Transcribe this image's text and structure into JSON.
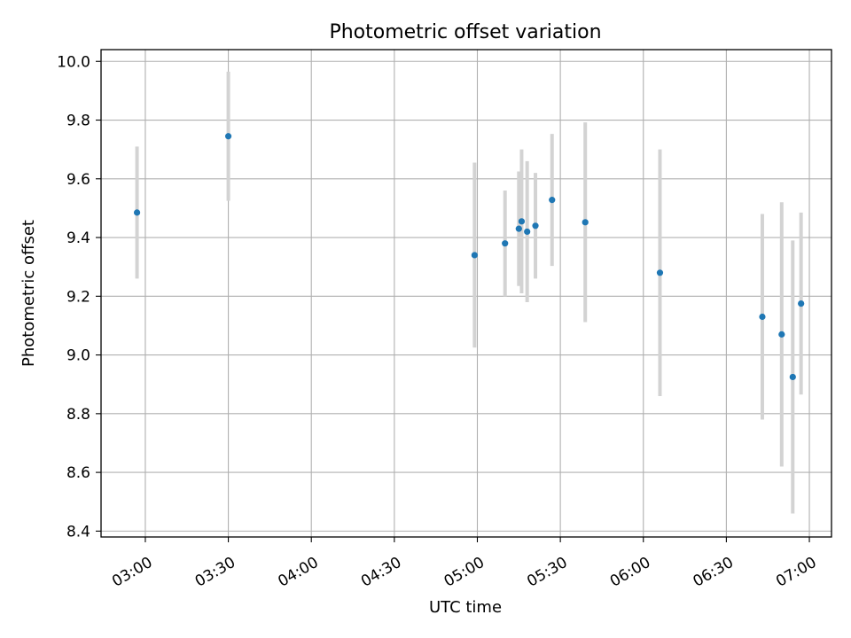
{
  "chart_data": {
    "type": "scatter",
    "title": "Photometric offset variation",
    "xlabel": "UTC time",
    "ylabel": "Photometric offset",
    "x_ticks": [
      "03:00",
      "03:30",
      "04:00",
      "04:30",
      "05:00",
      "05:30",
      "06:00",
      "06:30",
      "07:00"
    ],
    "y_ticks": [
      "8.4",
      "8.6",
      "8.8",
      "9.0",
      "9.2",
      "9.4",
      "9.6",
      "9.8",
      "10.0"
    ],
    "xlim": [
      "02:44",
      "07:08"
    ],
    "ylim": [
      8.38,
      10.04
    ],
    "grid": true,
    "colors": {
      "point": "#1f77b4",
      "errorbar": "#d3d3d3",
      "grid": "#b0b0b0"
    },
    "points": [
      {
        "time": "02:57",
        "value": 9.485,
        "error": 0.225
      },
      {
        "time": "03:30",
        "value": 9.745,
        "error": 0.22
      },
      {
        "time": "04:59",
        "value": 9.34,
        "error": 0.315
      },
      {
        "time": "05:10",
        "value": 9.38,
        "error": 0.18
      },
      {
        "time": "05:15",
        "value": 9.43,
        "error": 0.195
      },
      {
        "time": "05:16",
        "value": 9.455,
        "error": 0.245
      },
      {
        "time": "05:18",
        "value": 9.42,
        "error": 0.24
      },
      {
        "time": "05:21",
        "value": 9.44,
        "error": 0.18
      },
      {
        "time": "05:27",
        "value": 9.528,
        "error": 0.225
      },
      {
        "time": "05:39",
        "value": 9.452,
        "error": 0.34
      },
      {
        "time": "06:06",
        "value": 9.28,
        "error": 0.42
      },
      {
        "time": "06:43",
        "value": 9.13,
        "error": 0.35
      },
      {
        "time": "06:50",
        "value": 9.07,
        "error": 0.45
      },
      {
        "time": "06:54",
        "value": 8.925,
        "error": 0.465
      },
      {
        "time": "06:57",
        "value": 9.175,
        "error": 0.31
      }
    ]
  }
}
